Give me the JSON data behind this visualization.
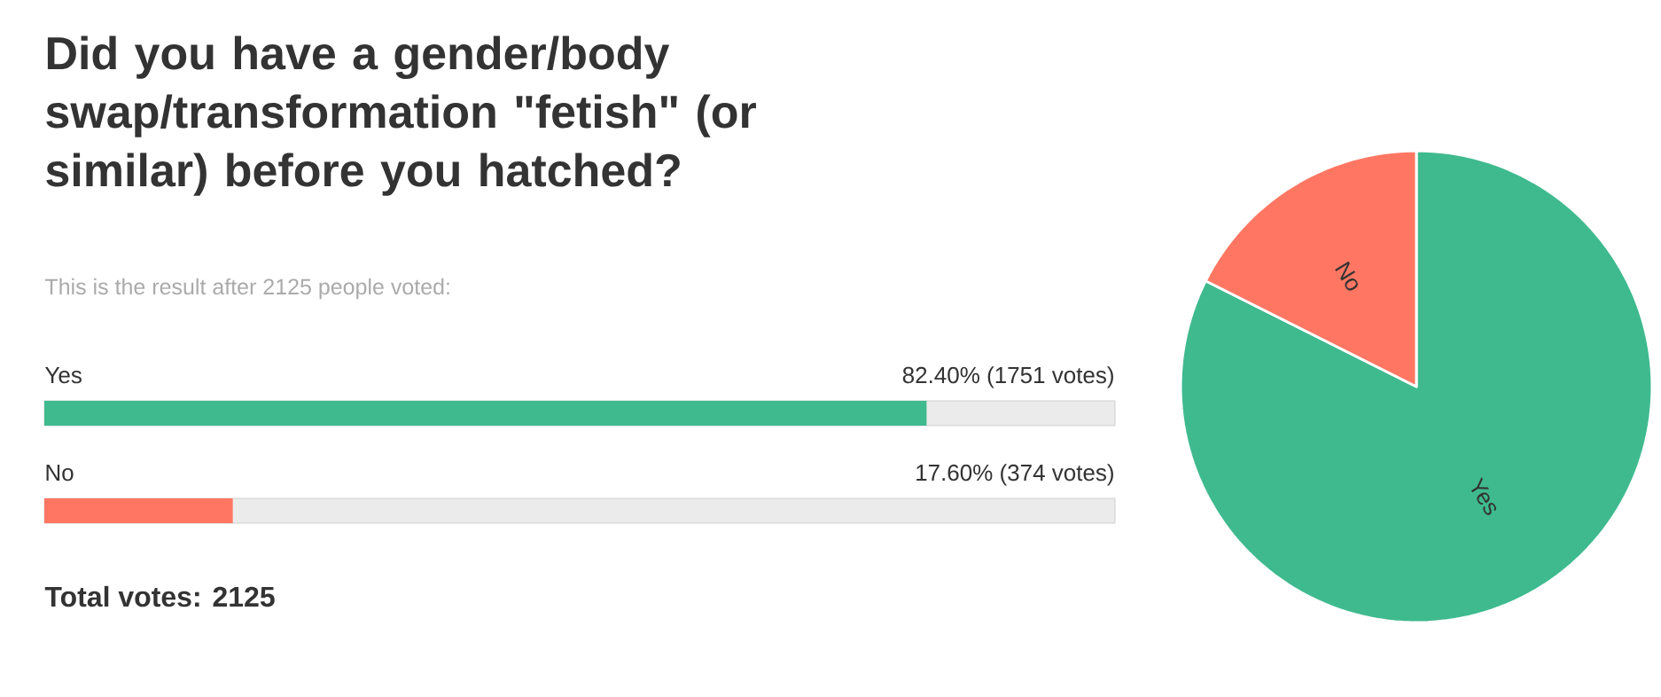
{
  "chart_data": [
    {
      "type": "bar",
      "orientation": "horizontal",
      "title": "Did you have a gender/body swap/transformation \"fetish\" (or similar) before you hatched?",
      "subtitle": "This is the result after 2125 people voted:",
      "categories": [
        "Yes",
        "No"
      ],
      "values": [
        82.4,
        17.6
      ],
      "colors": [
        "#3fba8f",
        "#ff7763"
      ],
      "value_labels": [
        "82.40% (1751 votes)",
        "17.60% (374 votes)"
      ],
      "xlim": [
        0,
        100
      ],
      "annotations": [
        "Total votes: 2125"
      ]
    },
    {
      "type": "pie",
      "categories": [
        "Yes",
        "No"
      ],
      "values": [
        82.4,
        17.6
      ],
      "colors": [
        "#3fba8f",
        "#ff7763"
      ]
    }
  ]
}
